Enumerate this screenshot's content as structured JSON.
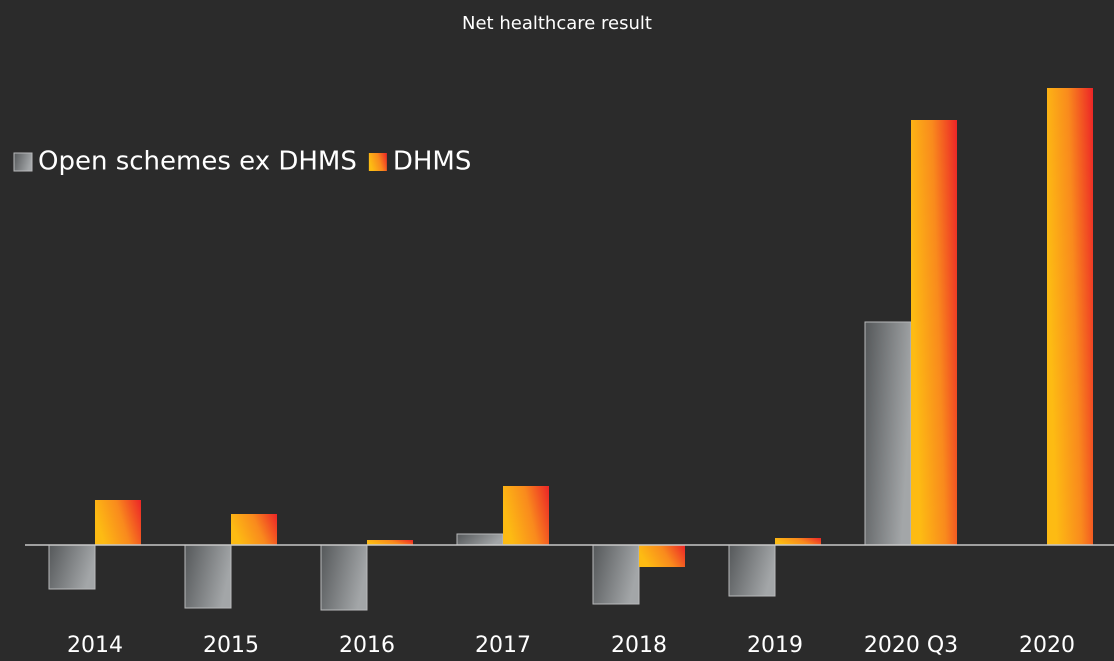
{
  "chart_data": {
    "type": "bar",
    "title": "Net healthcare result",
    "categories": [
      "2014",
      "2015",
      "2016",
      "2017",
      "2018",
      "2019",
      "2020 Q3",
      "2020"
    ],
    "series": [
      {
        "name": "Open schemes ex DHMS",
        "color": "#808385",
        "values": [
          -4.4,
          -6.3,
          -6.5,
          1.1,
          -5.9,
          -5.1,
          22.3,
          null
        ]
      },
      {
        "name": "DHMS",
        "color": "#f7781c",
        "values": [
          4.5,
          3.1,
          0.5,
          5.9,
          -2.2,
          0.7,
          42.5,
          45.7
        ]
      }
    ],
    "ylim": [
      -10,
      50
    ],
    "legend": "upper left"
  }
}
